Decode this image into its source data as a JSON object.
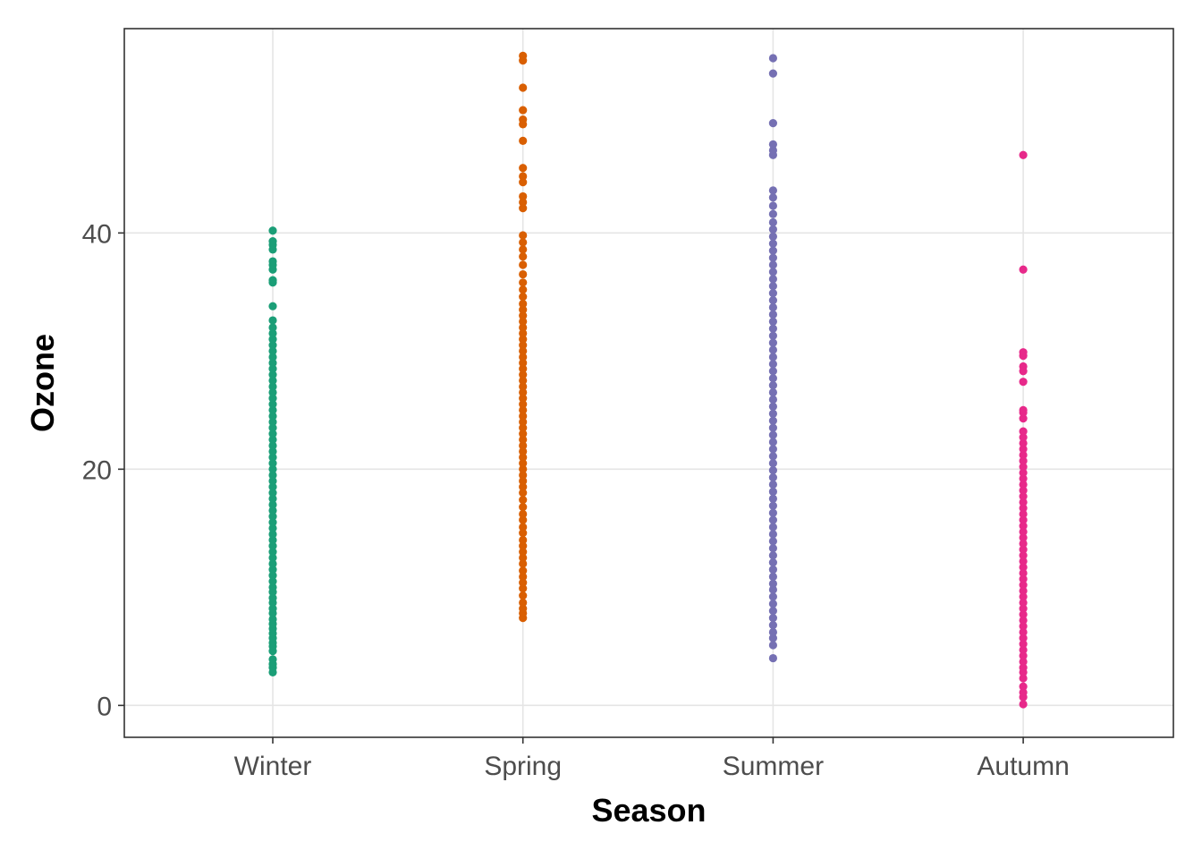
{
  "chart_data": {
    "type": "scatter",
    "title": "",
    "xlabel": "Season",
    "ylabel": "Ozone",
    "categories": [
      "Winter",
      "Spring",
      "Summer",
      "Autumn"
    ],
    "y_ticks": [
      0,
      20,
      40
    ],
    "y_tick_labels": [
      "0",
      "20",
      "40"
    ],
    "ylim": [
      -2.7,
      57.3
    ],
    "grid": true,
    "legend": "none",
    "series": [
      {
        "category": "Winter",
        "color": "#1b9e77",
        "values": [
          2.8,
          3.2,
          3.5,
          3.9,
          4.6,
          5.0,
          5.3,
          5.7,
          6.1,
          6.5,
          6.9,
          7.3,
          7.8,
          8.2,
          8.7,
          9.1,
          9.6,
          10.0,
          10.5,
          11.0,
          11.5,
          12.0,
          12.5,
          13.0,
          13.5,
          14.0,
          14.5,
          15.0,
          15.5,
          16.0,
          16.5,
          17.0,
          17.5,
          18.0,
          18.5,
          19.0,
          19.5,
          20.0,
          20.5,
          21.0,
          21.5,
          22.0,
          22.5,
          23.0,
          23.5,
          24.0,
          24.5,
          25.0,
          25.5,
          26.0,
          26.5,
          27.0,
          27.5,
          28.0,
          28.5,
          29.0,
          29.5,
          30.0,
          30.5,
          31.0,
          31.5,
          32.0,
          32.6,
          33.8,
          35.8,
          36.0,
          36.9,
          37.3,
          37.6,
          38.6,
          39.0,
          39.3,
          40.2
        ]
      },
      {
        "category": "Spring",
        "color": "#d95f02",
        "values": [
          7.4,
          7.8,
          8.2,
          8.7,
          9.3,
          9.9,
          10.4,
          10.9,
          11.4,
          12.0,
          12.5,
          13.0,
          13.5,
          14.0,
          14.6,
          15.1,
          15.7,
          16.2,
          16.8,
          17.4,
          18.0,
          18.5,
          19.0,
          19.5,
          20.0,
          20.5,
          21.0,
          21.5,
          22.0,
          22.5,
          23.0,
          23.5,
          24.0,
          24.5,
          25.0,
          25.5,
          26.0,
          26.5,
          27.0,
          27.5,
          28.0,
          28.5,
          29.0,
          29.5,
          30.0,
          30.5,
          31.0,
          31.5,
          32.0,
          32.5,
          33.0,
          33.5,
          34.0,
          34.6,
          35.2,
          35.8,
          36.5,
          37.3,
          38.0,
          38.6,
          39.2,
          39.8,
          42.1,
          42.6,
          43.1,
          44.3,
          44.8,
          45.5,
          47.8,
          49.2,
          49.6,
          50.4,
          52.3,
          54.6,
          55.0
        ]
      },
      {
        "category": "Summer",
        "color": "#7570b3",
        "values": [
          4.0,
          5.1,
          5.7,
          6.2,
          6.8,
          7.4,
          8.0,
          8.6,
          9.2,
          9.8,
          10.3,
          10.9,
          11.5,
          12.1,
          12.7,
          13.3,
          13.9,
          14.5,
          15.1,
          15.7,
          16.3,
          16.9,
          17.5,
          18.1,
          18.7,
          19.3,
          19.9,
          20.5,
          21.1,
          21.7,
          22.3,
          22.9,
          23.5,
          24.1,
          24.7,
          25.3,
          25.9,
          26.5,
          27.1,
          27.7,
          28.3,
          28.9,
          29.5,
          30.1,
          30.7,
          31.3,
          31.9,
          32.5,
          33.1,
          33.7,
          34.3,
          34.9,
          35.5,
          36.1,
          36.7,
          37.3,
          37.9,
          38.5,
          39.1,
          39.7,
          40.3,
          40.9,
          41.6,
          42.3,
          43.0,
          43.6,
          46.6,
          47.0,
          47.5,
          49.3,
          53.5,
          54.8
        ]
      },
      {
        "category": "Autumn",
        "color": "#e7298a",
        "values": [
          0.1,
          0.7,
          1.1,
          1.6,
          2.3,
          2.8,
          3.2,
          3.7,
          4.2,
          4.7,
          5.2,
          5.7,
          6.2,
          6.7,
          7.2,
          7.7,
          8.2,
          8.7,
          9.2,
          9.7,
          10.2,
          10.7,
          11.2,
          11.7,
          12.2,
          12.7,
          13.2,
          13.7,
          14.2,
          14.7,
          15.2,
          15.7,
          16.2,
          16.7,
          17.2,
          17.7,
          18.2,
          18.7,
          19.2,
          19.7,
          20.2,
          20.7,
          21.2,
          21.7,
          22.2,
          22.7,
          23.2,
          24.3,
          24.8,
          25.0,
          27.4,
          28.3,
          28.7,
          29.6,
          29.9,
          36.9,
          46.6
        ]
      }
    ]
  }
}
